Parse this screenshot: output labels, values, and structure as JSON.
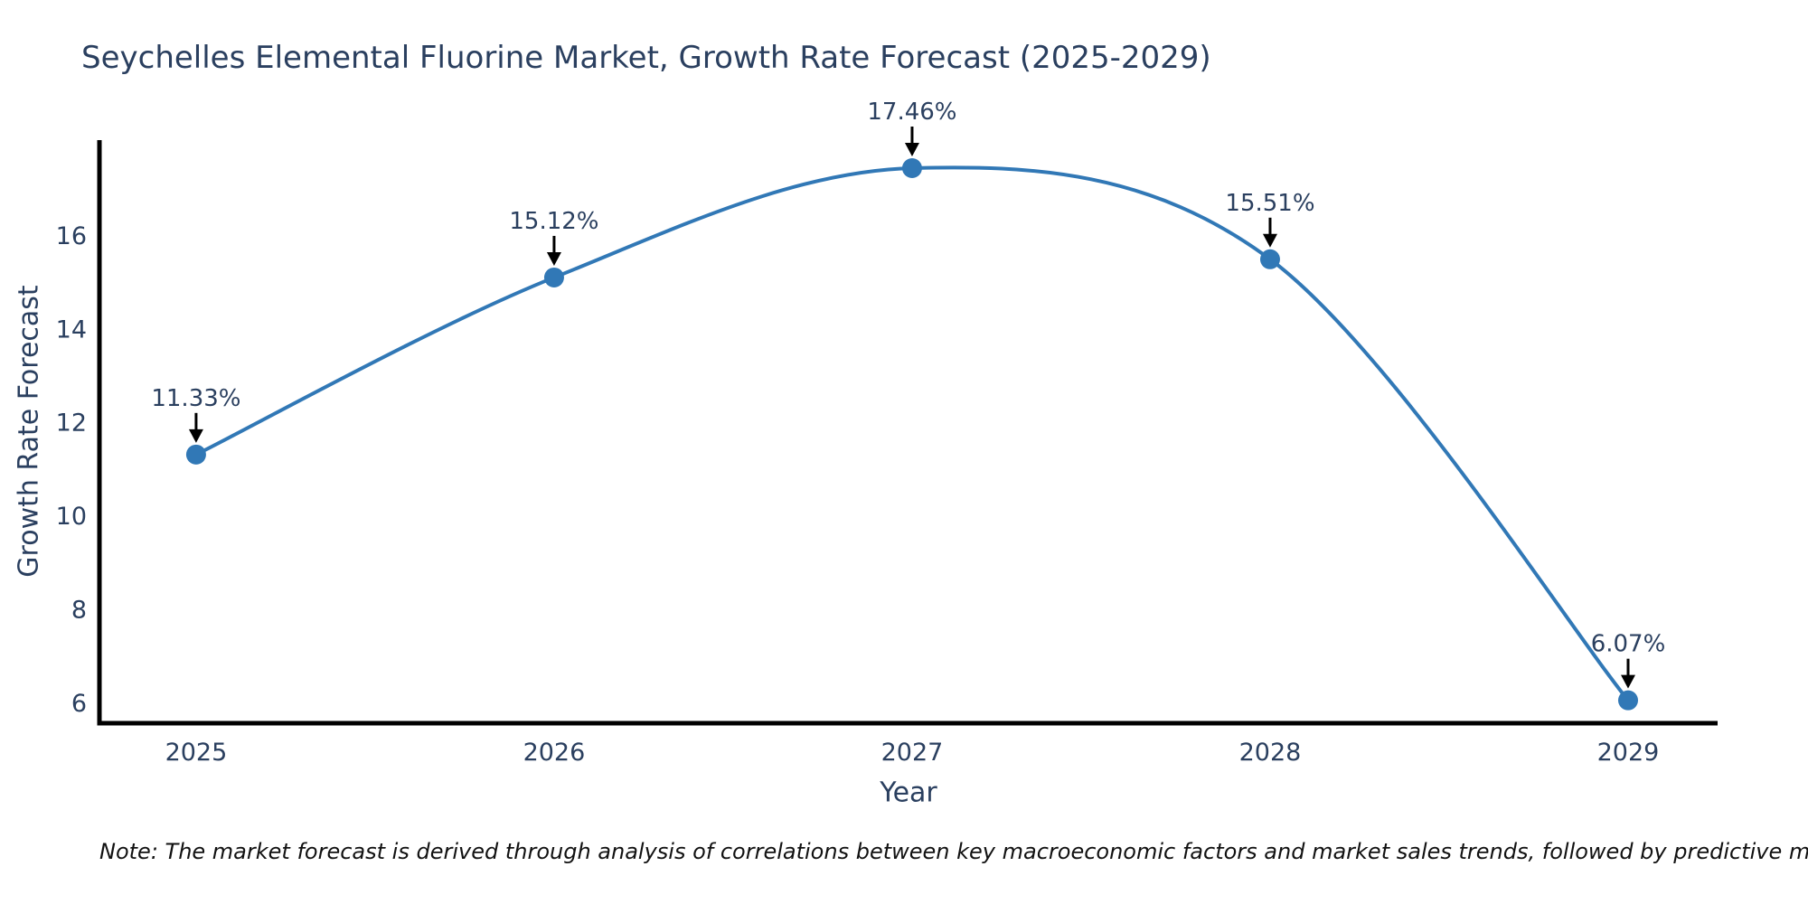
{
  "title": "Seychelles Elemental Fluorine Market, Growth Rate Forecast (2025-2029)",
  "note": "Note: The market forecast is derived through analysis of correlations between key macroeconomic factors and market sales trends, followed by predictive modeling to project future sales",
  "chart_data": {
    "type": "line",
    "line_shape": "spline",
    "title": "Seychelles Elemental Fluorine Market, Growth Rate Forecast (2025-2029)",
    "xlabel": "Year",
    "ylabel": "Growth Rate Forecast",
    "x": [
      2025,
      2026,
      2027,
      2028,
      2029
    ],
    "y": [
      11.33,
      15.12,
      17.46,
      15.51,
      6.07
    ],
    "point_labels": [
      "11.33%",
      "15.12%",
      "17.46%",
      "15.51%",
      "6.07%"
    ],
    "xticks": [
      2025,
      2026,
      2027,
      2028,
      2029
    ],
    "yticks": [
      6,
      8,
      10,
      12,
      14,
      16
    ],
    "xlim": [
      2024.73,
      2029.25
    ],
    "ylim": [
      5.58,
      18.06
    ],
    "grid": false,
    "legend": "none",
    "annotation_style": "black down-arrow pointing at each marker, label above",
    "colors": {
      "line": "#3178b6",
      "marker": "#3178b6",
      "axis": "#000000",
      "arrow": "#000000",
      "tick_label": "#2a3f5f",
      "annotation_label": "#2a3f5f",
      "title": "#2a3f5f",
      "background": "#ffffff"
    }
  }
}
